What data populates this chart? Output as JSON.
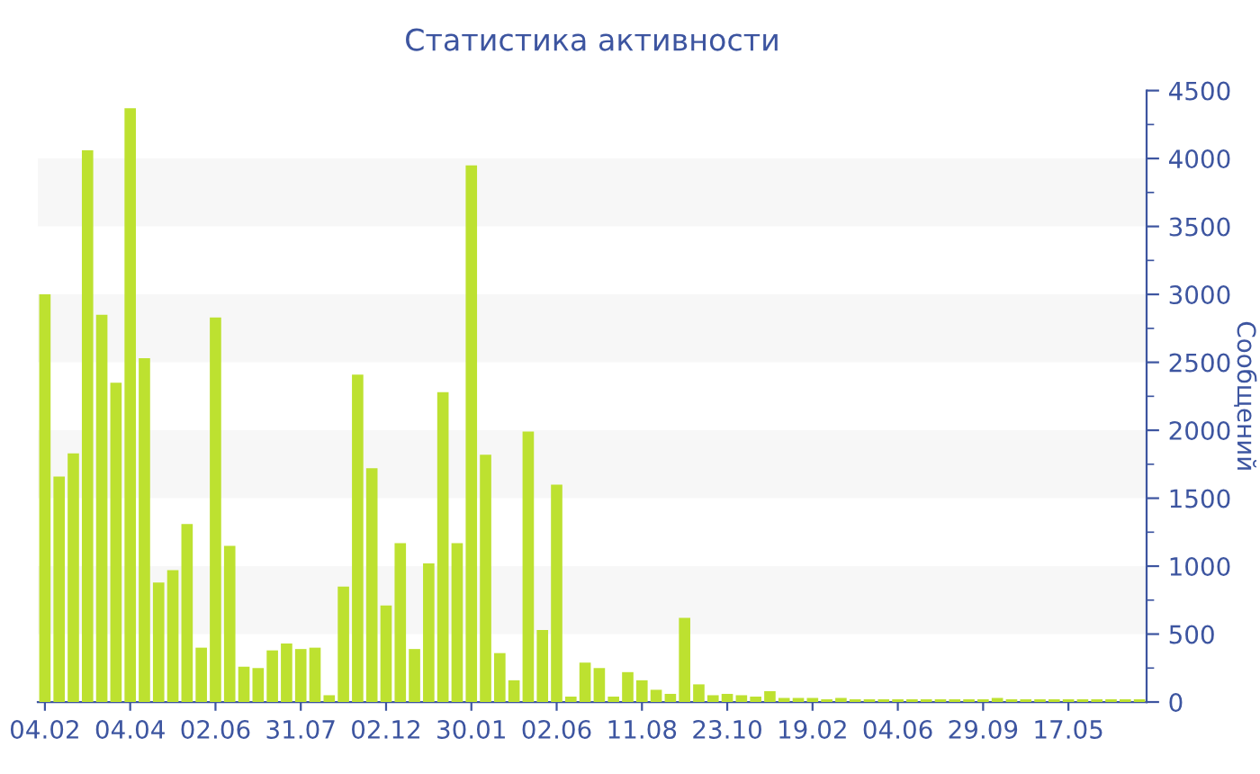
{
  "chart_data": {
    "type": "bar",
    "title": "Статистика активности",
    "ylabel": "Сообщений",
    "categories": [
      "04.02",
      null,
      null,
      null,
      null,
      null,
      "04.04",
      null,
      null,
      null,
      null,
      null,
      "02.06",
      null,
      null,
      null,
      null,
      null,
      "31.07",
      null,
      null,
      null,
      null,
      null,
      "02.12",
      null,
      null,
      null,
      null,
      null,
      "30.01",
      null,
      null,
      null,
      null,
      null,
      "02.06",
      null,
      null,
      null,
      null,
      null,
      "11.08",
      null,
      null,
      null,
      null,
      null,
      "23.10",
      null,
      null,
      null,
      null,
      null,
      "19.02",
      null,
      null,
      null,
      null,
      null,
      "04.06",
      null,
      null,
      null,
      null,
      null,
      "29.09",
      null,
      null,
      null,
      null,
      null,
      "17.05",
      null,
      null,
      null,
      null,
      null
    ],
    "values": [
      3000,
      1660,
      1830,
      4060,
      2850,
      2350,
      4370,
      2530,
      880,
      970,
      1310,
      400,
      2830,
      1150,
      260,
      250,
      380,
      430,
      390,
      400,
      50,
      850,
      2410,
      1720,
      710,
      1170,
      390,
      1020,
      2280,
      1170,
      3950,
      1820,
      360,
      160,
      1990,
      530,
      1600,
      40,
      290,
      250,
      40,
      220,
      160,
      90,
      60,
      620,
      130,
      50,
      60,
      50,
      40,
      80,
      30,
      30,
      30,
      20,
      30,
      20,
      20,
      20,
      20,
      20,
      20,
      20,
      20,
      20,
      20,
      30,
      20,
      20,
      20,
      20,
      20,
      20,
      20,
      20,
      20,
      20
    ],
    "color": "#bde130",
    "ylim": [
      0,
      4500
    ],
    "yticks": [
      0,
      500,
      1000,
      1500,
      2000,
      2500,
      3000,
      3500,
      4000,
      4500
    ],
    "bands": [
      {
        "axis": "y",
        "from": 500,
        "to": 1000,
        "color": "#f7f7f7"
      },
      {
        "axis": "y",
        "from": 1500,
        "to": 2000,
        "color": "#f7f7f7"
      },
      {
        "axis": "y",
        "from": 2500,
        "to": 3000,
        "color": "#f7f7f7"
      },
      {
        "axis": "y",
        "from": 3500,
        "to": 4000,
        "color": "#f7f7f7"
      }
    ],
    "grid": false,
    "legend": false
  }
}
